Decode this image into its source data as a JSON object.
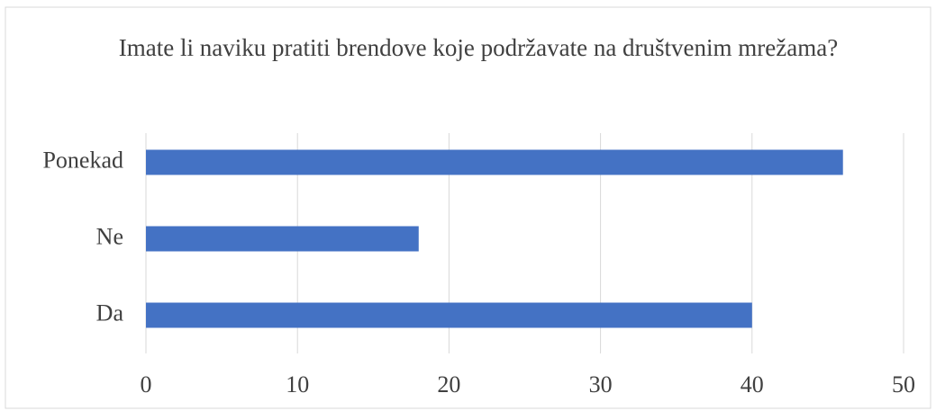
{
  "chart_data": {
    "type": "bar",
    "orientation": "horizontal",
    "title": "Imate li naviku pratiti brendove koje podržavate na društvenim mrežama?",
    "categories": [
      "Da",
      "Ne",
      "Ponekad"
    ],
    "values": [
      40,
      18,
      46
    ],
    "color": "#4472c4",
    "xlim": [
      0,
      50
    ],
    "xticks": [
      0,
      10,
      20,
      30,
      40,
      50
    ],
    "grid": true
  }
}
